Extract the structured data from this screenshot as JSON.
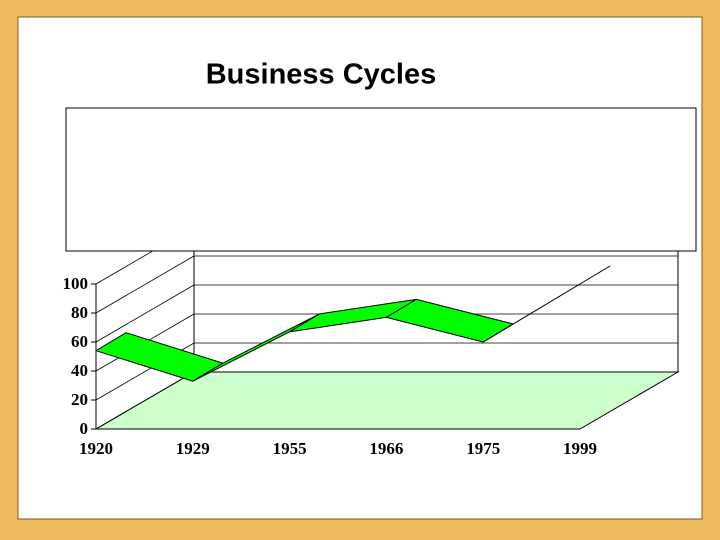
{
  "chart_data": {
    "type": "line3d",
    "title": "Business Cycles",
    "categories": [
      "1920",
      "1929",
      "1955",
      "1966",
      "1975",
      "1999"
    ],
    "values": [
      54,
      33,
      67,
      77,
      60,
      100
    ],
    "color": "#00FF00",
    "floor_color": "#CCFFCC",
    "ylim": [
      0,
      100
    ],
    "yticks": [
      0,
      20,
      40,
      60,
      80,
      100
    ],
    "grid": true
  }
}
